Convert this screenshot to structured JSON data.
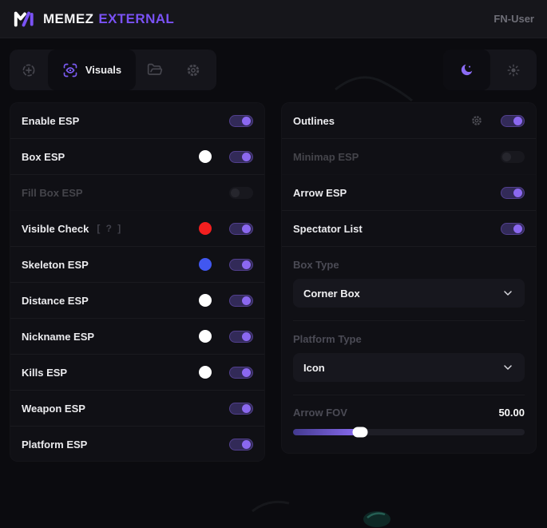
{
  "header": {
    "brand": "MEMEZ",
    "brand_accent": "EXTERNAL",
    "user_label": "FN-User"
  },
  "tabbar": {
    "tabs": [
      {
        "id": "aimbot",
        "icon": "crosshair-icon",
        "active": false
      },
      {
        "id": "visuals",
        "icon": "eye-scan-icon",
        "label": "Visuals",
        "active": true
      },
      {
        "id": "configs",
        "icon": "folder-icon",
        "active": false
      },
      {
        "id": "settings",
        "icon": "gear-icon",
        "active": false
      }
    ],
    "theme_modes": [
      {
        "id": "dark",
        "icon": "moon-icon",
        "active": true
      },
      {
        "id": "light",
        "icon": "sun-icon",
        "active": false
      }
    ]
  },
  "left_panel": {
    "rows": [
      {
        "label": "Enable ESP",
        "toggle": true,
        "disabled": false
      },
      {
        "label": "Box ESP",
        "swatch": "#ffffff",
        "toggle": true,
        "disabled": false
      },
      {
        "label": "Fill Box ESP",
        "toggle": false,
        "disabled": true
      },
      {
        "label": "Visible Check",
        "hint": "[ ? ]",
        "swatch": "#f31f1f",
        "toggle": true,
        "disabled": false
      },
      {
        "label": "Skeleton ESP",
        "swatch": "#4157f0",
        "toggle": true,
        "disabled": false
      },
      {
        "label": "Distance ESP",
        "swatch": "#ffffff",
        "toggle": true,
        "disabled": false
      },
      {
        "label": "Nickname ESP",
        "swatch": "#ffffff",
        "toggle": true,
        "disabled": false
      },
      {
        "label": "Kills ESP",
        "swatch": "#ffffff",
        "toggle": true,
        "disabled": false
      },
      {
        "label": "Weapon ESP",
        "toggle": true,
        "disabled": false
      },
      {
        "label": "Platform ESP",
        "toggle": true,
        "disabled": false
      }
    ]
  },
  "right_panel": {
    "rows": [
      {
        "label": "Outlines",
        "gear": true,
        "toggle": true,
        "disabled": false
      },
      {
        "label": "Minimap ESP",
        "toggle": false,
        "disabled": true
      },
      {
        "label": "Arrow ESP",
        "toggle": true,
        "disabled": false
      },
      {
        "label": "Spectator List",
        "toggle": true,
        "disabled": false
      }
    ],
    "box_type": {
      "label": "Box Type",
      "value": "Corner Box"
    },
    "platform_type": {
      "label": "Platform Type",
      "value": "Icon"
    },
    "arrow_fov": {
      "label": "Arrow FOV",
      "value": "50.00",
      "percent": 29
    }
  },
  "colors": {
    "accent": "#7c56f5",
    "toggle_track": "#322a58",
    "toggle_knob": "#8b68f0",
    "swatch_red": "#f31f1f",
    "swatch_blue": "#4157f0",
    "swatch_white": "#ffffff",
    "panel_bg": "#101015",
    "page_bg": "#0b0b0f"
  }
}
